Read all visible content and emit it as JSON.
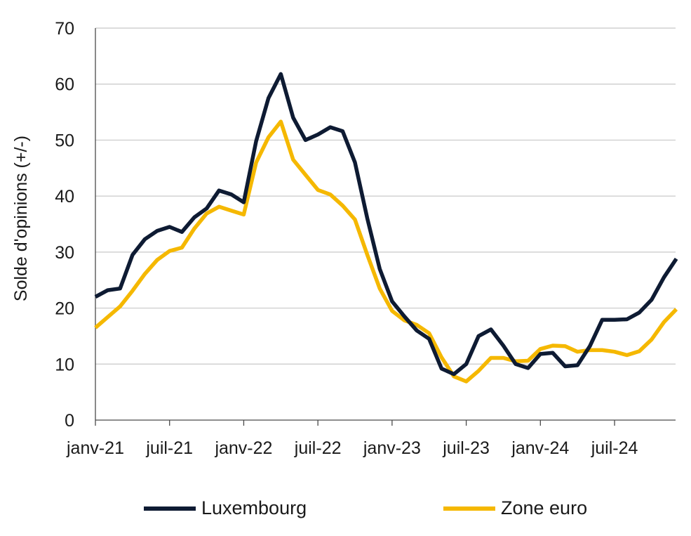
{
  "chart_data": {
    "type": "line",
    "ylabel": "Solde d'opinions (+/-)",
    "xlabel": "",
    "ylim": [
      0,
      70
    ],
    "yticks": [
      0,
      10,
      20,
      30,
      40,
      50,
      60,
      70
    ],
    "xtick_labels": [
      "janv-21",
      "juil-21",
      "janv-22",
      "juil-22",
      "janv-23",
      "juil-23",
      "janv-24",
      "juil-24"
    ],
    "x_start": "2021-01",
    "grid": "horizontal",
    "legend_position": "bottom",
    "series": [
      {
        "name": "Luxembourg",
        "color": "#0e1b33",
        "values": [
          22.0,
          23.2,
          23.5,
          29.5,
          32.3,
          33.8,
          34.5,
          33.6,
          36.2,
          37.8,
          41.0,
          40.3,
          38.9,
          49.8,
          57.5,
          61.8,
          54.0,
          50.0,
          51.0,
          52.3,
          51.6,
          46.0,
          36.0,
          27.0,
          21.2,
          18.5,
          16.0,
          14.5,
          9.2,
          8.2,
          10.0,
          15.0,
          16.2,
          13.3,
          10.0,
          9.3,
          11.8,
          12.0,
          9.6,
          9.8,
          13.2,
          17.9,
          17.9,
          18.0,
          19.2,
          21.5,
          25.5,
          28.8
        ]
      },
      {
        "name": "Zone euro",
        "color": "#f5b800",
        "values": [
          16.5,
          18.4,
          20.3,
          23.1,
          26.1,
          28.6,
          30.2,
          30.8,
          34.2,
          36.9,
          38.1,
          37.4,
          36.7,
          46.0,
          50.5,
          53.3,
          46.5,
          43.8,
          41.1,
          40.3,
          38.3,
          35.8,
          29.5,
          23.5,
          19.5,
          17.8,
          17.0,
          15.5,
          11.2,
          7.8,
          6.9,
          8.8,
          11.1,
          11.1,
          10.5,
          10.6,
          12.7,
          13.3,
          13.2,
          12.2,
          12.5,
          12.5,
          12.2,
          11.6,
          12.3,
          14.4,
          17.5,
          19.8
        ]
      }
    ]
  }
}
